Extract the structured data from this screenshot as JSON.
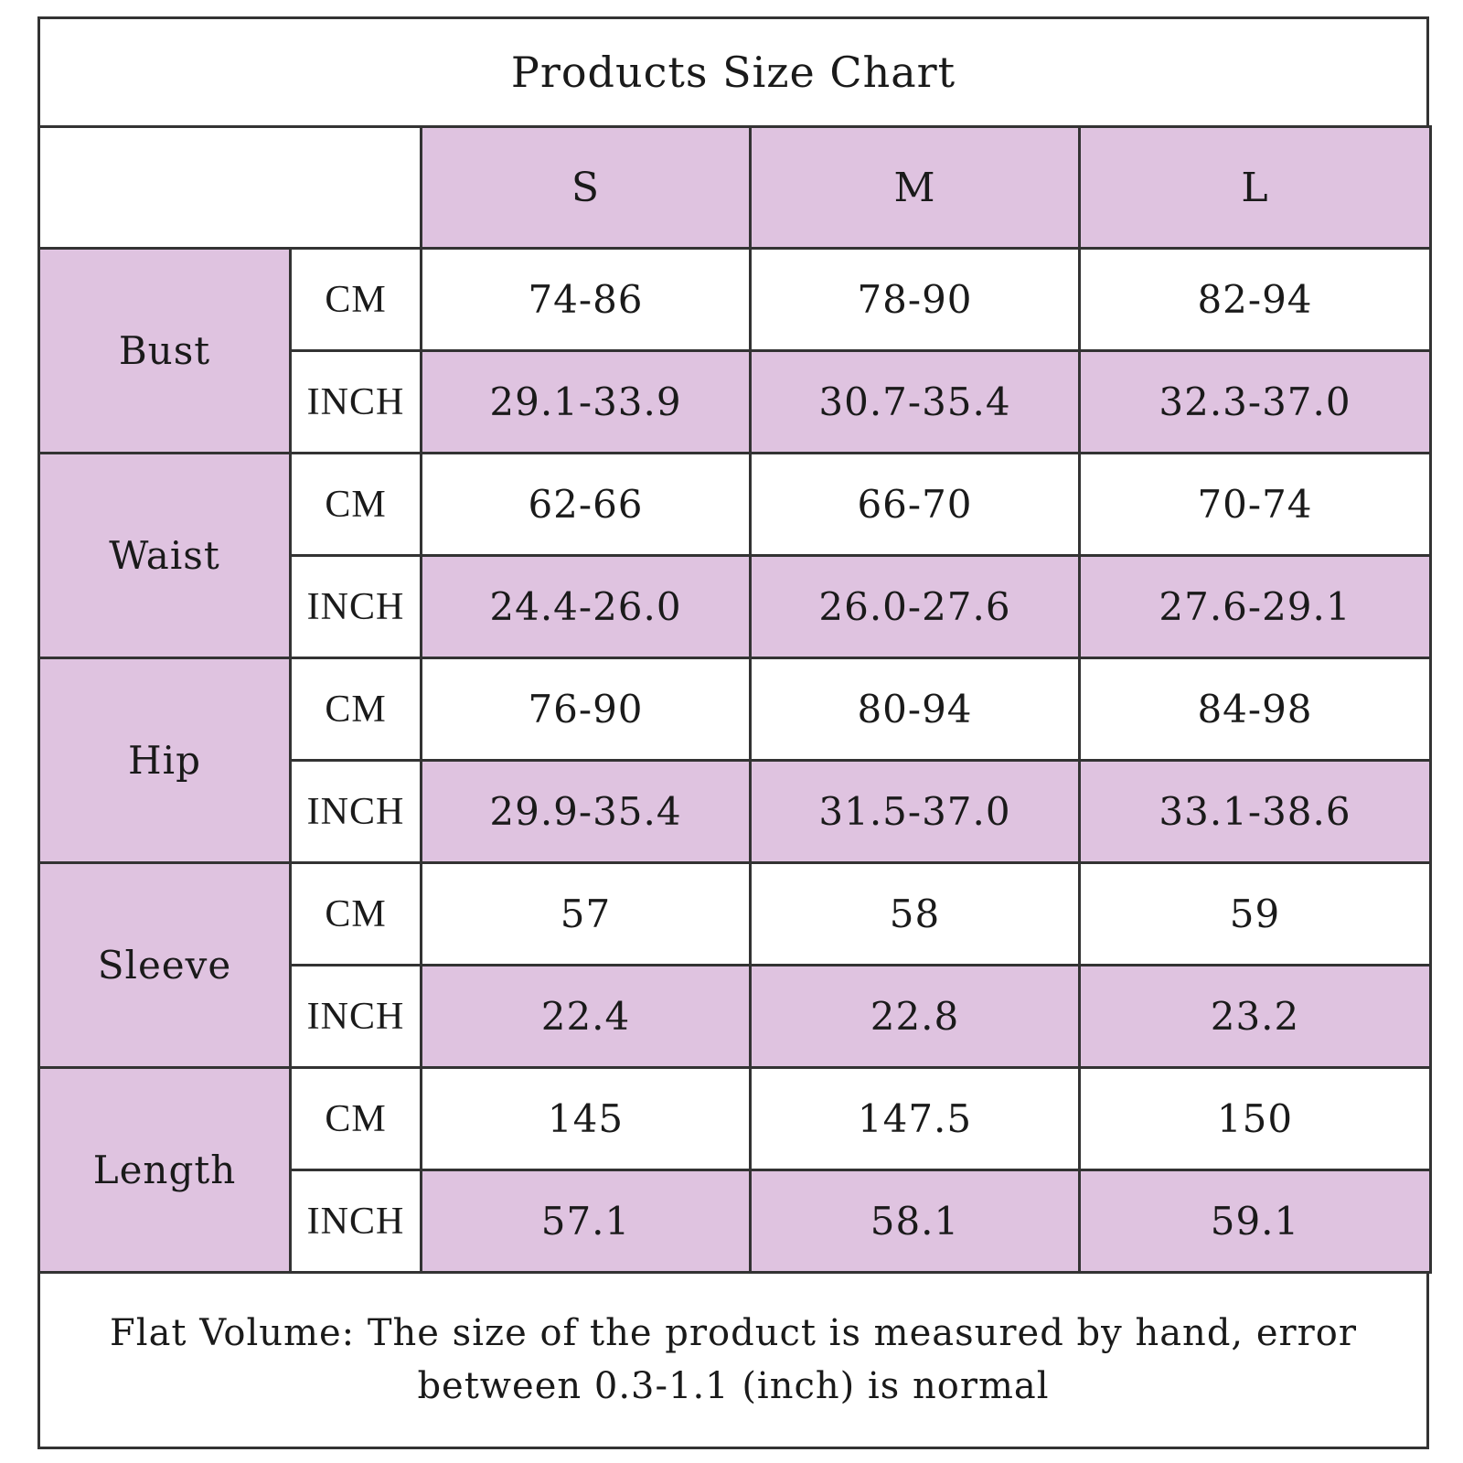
{
  "title": "Products Size Chart",
  "sizes": [
    "S",
    "M",
    "L"
  ],
  "measurements": [
    {
      "name": "Bust",
      "cm": [
        "74-86",
        "78-90",
        "82-94"
      ],
      "inch": [
        "29.1-33.9",
        "30.7-35.4",
        "32.3-37.0"
      ]
    },
    {
      "name": "Waist",
      "cm": [
        "62-66",
        "66-70",
        "70-74"
      ],
      "inch": [
        "24.4-26.0",
        "26.0-27.6",
        "27.6-29.1"
      ]
    },
    {
      "name": "Hip",
      "cm": [
        "76-90",
        "80-94",
        "84-98"
      ],
      "inch": [
        "29.9-35.4",
        "31.5-37.0",
        "33.1-38.6"
      ]
    },
    {
      "name": "Sleeve",
      "cm": [
        "57",
        "58",
        "59"
      ],
      "inch": [
        "22.4",
        "22.8",
        "23.2"
      ]
    },
    {
      "name": "Length",
      "cm": [
        "145",
        "147.5",
        "150"
      ],
      "inch": [
        "57.1",
        "58.1",
        "59.1"
      ]
    }
  ],
  "units": {
    "cm": "CM",
    "inch": "INCH"
  },
  "note": "Flat Volume: The size of the product is measured by hand, error between 0.3-1.1 (inch) is normal",
  "colors": {
    "highlight": "#dfc3e0",
    "border": "#333333"
  }
}
